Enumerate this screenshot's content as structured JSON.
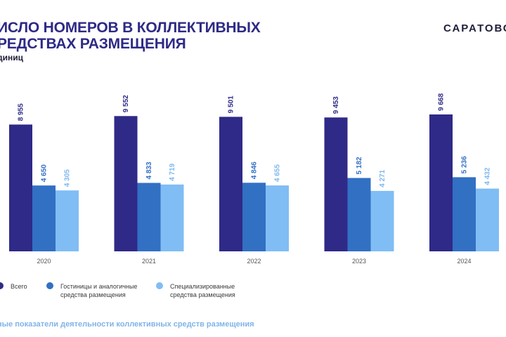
{
  "header": {
    "title_line1": "ИСЛО НОМЕРОВ В КОЛЛЕКТИВНЫХ",
    "title_line2": "РЕДСТВАХ РАЗМЕЩЕНИЯ",
    "unit": "диниц"
  },
  "brand": {
    "text": "САРАТОВС"
  },
  "footer": {
    "text": "ные показатели деятельности коллективных средств размещения"
  },
  "legend": [
    {
      "line1": "Всего",
      "line2": ""
    },
    {
      "line1": "Гостиницы и аналогичные",
      "line2": "средства размещения"
    },
    {
      "line1": "Специализированные",
      "line2": "средства размещения"
    }
  ],
  "chart_data": {
    "type": "bar",
    "title": "ЧИСЛО НОМЕРОВ В КОЛЛЕКТИВНЫХ СРЕДСТВАХ РАЗМЕЩЕНИЯ",
    "ylabel": "единиц",
    "categories": [
      "2020",
      "2021",
      "2022",
      "2023",
      "2024"
    ],
    "series": [
      {
        "name": "Всего",
        "color": "#2f2a87",
        "values": [
          8955,
          9552,
          9501,
          9453,
          9668
        ],
        "labels": [
          "8 955",
          "9 552",
          "9 501",
          "9 453",
          "9 668"
        ]
      },
      {
        "name": "Гостиницы и аналогичные средства размещения",
        "color": "#3270c4",
        "values": [
          4650,
          4833,
          4846,
          5182,
          5236
        ],
        "labels": [
          "4 650",
          "4 833",
          "4 846",
          "5 182",
          "5 236"
        ]
      },
      {
        "name": "Специализированные средства размещения",
        "color": "#80bdf5",
        "values": [
          4305,
          4719,
          4655,
          4271,
          4432
        ],
        "labels": [
          "4 305",
          "4 719",
          "4 655",
          "4 271",
          "4 432"
        ]
      }
    ],
    "label_colors": [
      "#2f2a87",
      "#3270c4",
      "#7fb8ee"
    ],
    "ylim": [
      0,
      11000
    ],
    "grid": false,
    "legend_position": "bottom-left"
  }
}
